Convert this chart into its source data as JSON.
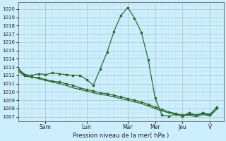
{
  "title": "Pression niveau de la mer( hPa )",
  "bg_color": "#cceeff",
  "grid_color_major": "#aacccc",
  "grid_color_minor": "#bbdddd",
  "line_color": "#2d6a2d",
  "marker_color": "#2d6a2d",
  "ylim": [
    1006.5,
    1020.8
  ],
  "yticks": [
    1007,
    1008,
    1009,
    1010,
    1011,
    1012,
    1013,
    1014,
    1015,
    1016,
    1017,
    1018,
    1019,
    1020
  ],
  "day_labels": [
    "Sam",
    "Lun",
    "Mar",
    "Mer",
    "Jeu",
    "V"
  ],
  "day_positions": [
    4,
    10,
    16,
    20,
    24,
    28
  ],
  "xlim": [
    0,
    30
  ],
  "num_x": 30,
  "series1_x": [
    0,
    1,
    2,
    3,
    4,
    5,
    6,
    7,
    8,
    9,
    10,
    11,
    12,
    13,
    14,
    15,
    16,
    17,
    18,
    19,
    20,
    21,
    22,
    23,
    24,
    25,
    26,
    27,
    28,
    29
  ],
  "series1_y": [
    1012.8,
    1012.1,
    1012.0,
    1012.2,
    1012.1,
    1012.3,
    1012.2,
    1012.1,
    1012.0,
    1012.0,
    1011.5,
    1010.8,
    1012.8,
    1014.8,
    1017.3,
    1019.2,
    1020.2,
    1018.9,
    1017.2,
    1013.9,
    1009.3,
    1007.2,
    1007.1,
    1007.3,
    1007.1,
    1007.5,
    1007.2,
    1007.4,
    1007.2,
    1008.2
  ],
  "series2_x": [
    0,
    1,
    2,
    3,
    4,
    5,
    6,
    7,
    8,
    9,
    10,
    11,
    12,
    13,
    14,
    15,
    16,
    17,
    18,
    19,
    20,
    21,
    22,
    23,
    24,
    25,
    26,
    27,
    28,
    29
  ],
  "series2_y": [
    1012.7,
    1012.0,
    1011.8,
    1011.7,
    1011.5,
    1011.3,
    1011.2,
    1011.0,
    1010.8,
    1010.5,
    1010.3,
    1010.1,
    1009.9,
    1009.8,
    1009.6,
    1009.4,
    1009.2,
    1009.0,
    1008.8,
    1008.5,
    1008.2,
    1007.9,
    1007.6,
    1007.4,
    1007.2,
    1007.3,
    1007.2,
    1007.5,
    1007.3,
    1008.1
  ],
  "series3_x": [
    0,
    1,
    2,
    3,
    4,
    5,
    6,
    7,
    8,
    9,
    10,
    11,
    12,
    13,
    14,
    15,
    16,
    17,
    18,
    19,
    20,
    21,
    22,
    23,
    24,
    25,
    26,
    27,
    28,
    29
  ],
  "series3_y": [
    1012.5,
    1011.9,
    1011.8,
    1011.6,
    1011.4,
    1011.2,
    1011.0,
    1010.8,
    1010.5,
    1010.3,
    1010.1,
    1009.9,
    1009.7,
    1009.6,
    1009.4,
    1009.2,
    1009.0,
    1008.8,
    1008.6,
    1008.3,
    1008.0,
    1007.7,
    1007.5,
    1007.3,
    1007.1,
    1007.2,
    1007.0,
    1007.3,
    1007.1,
    1007.9
  ]
}
